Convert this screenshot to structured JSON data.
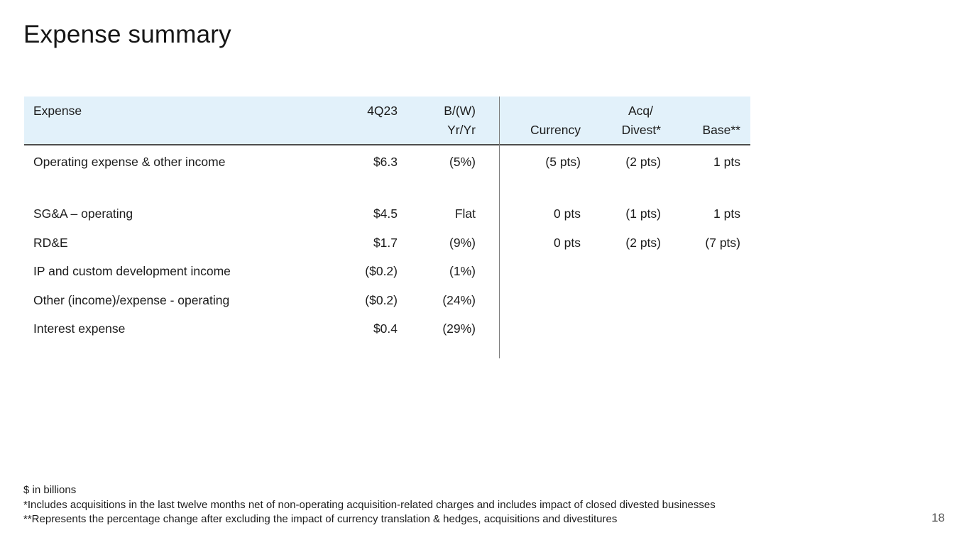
{
  "slide": {
    "title": "Expense summary",
    "page_number": "18"
  },
  "table": {
    "header": {
      "expense": "Expense",
      "q4": "4Q23",
      "bw_line1": "B/(W)",
      "bw_line2": "Yr/Yr",
      "currency": "Currency",
      "acq_line1": "Acq/",
      "acq_line2": "Divest*",
      "base": "Base**"
    },
    "rows": [
      {
        "label": "Operating expense & other income",
        "q4": "$6.3",
        "bw": "(5%)",
        "currency": "(5 pts)",
        "acq": "(2 pts)",
        "base": "1 pts"
      },
      {
        "label": "SG&A – operating",
        "q4": "$4.5",
        "bw": "Flat",
        "currency": "0 pts",
        "acq": "(1 pts)",
        "base": "1 pts"
      },
      {
        "label": "RD&E",
        "q4": "$1.7",
        "bw": "(9%)",
        "currency": "0 pts",
        "acq": "(2 pts)",
        "base": "(7 pts)"
      },
      {
        "label": "IP and custom development income",
        "q4": "($0.2)",
        "bw": "(1%)",
        "currency": "",
        "acq": "",
        "base": ""
      },
      {
        "label": "Other (income)/expense - operating",
        "q4": "($0.2)",
        "bw": "(24%)",
        "currency": "",
        "acq": "",
        "base": ""
      },
      {
        "label": "Interest expense",
        "q4": "$0.4",
        "bw": "(29%)",
        "currency": "",
        "acq": "",
        "base": ""
      }
    ]
  },
  "footnotes": [
    "$ in billions",
    "*Includes acquisitions in the last twelve months net of non-operating acquisition-related charges and includes impact of closed divested businesses",
    "**Represents the percentage change after excluding the impact of currency translation & hedges, acquisitions and divestitures"
  ],
  "colors": {
    "header_background": "#e2f1fa",
    "header_border": "#4d4d4d",
    "divider": "#7d7d7d",
    "text": "#1c1c1c",
    "page_number": "#5a5a5a"
  }
}
